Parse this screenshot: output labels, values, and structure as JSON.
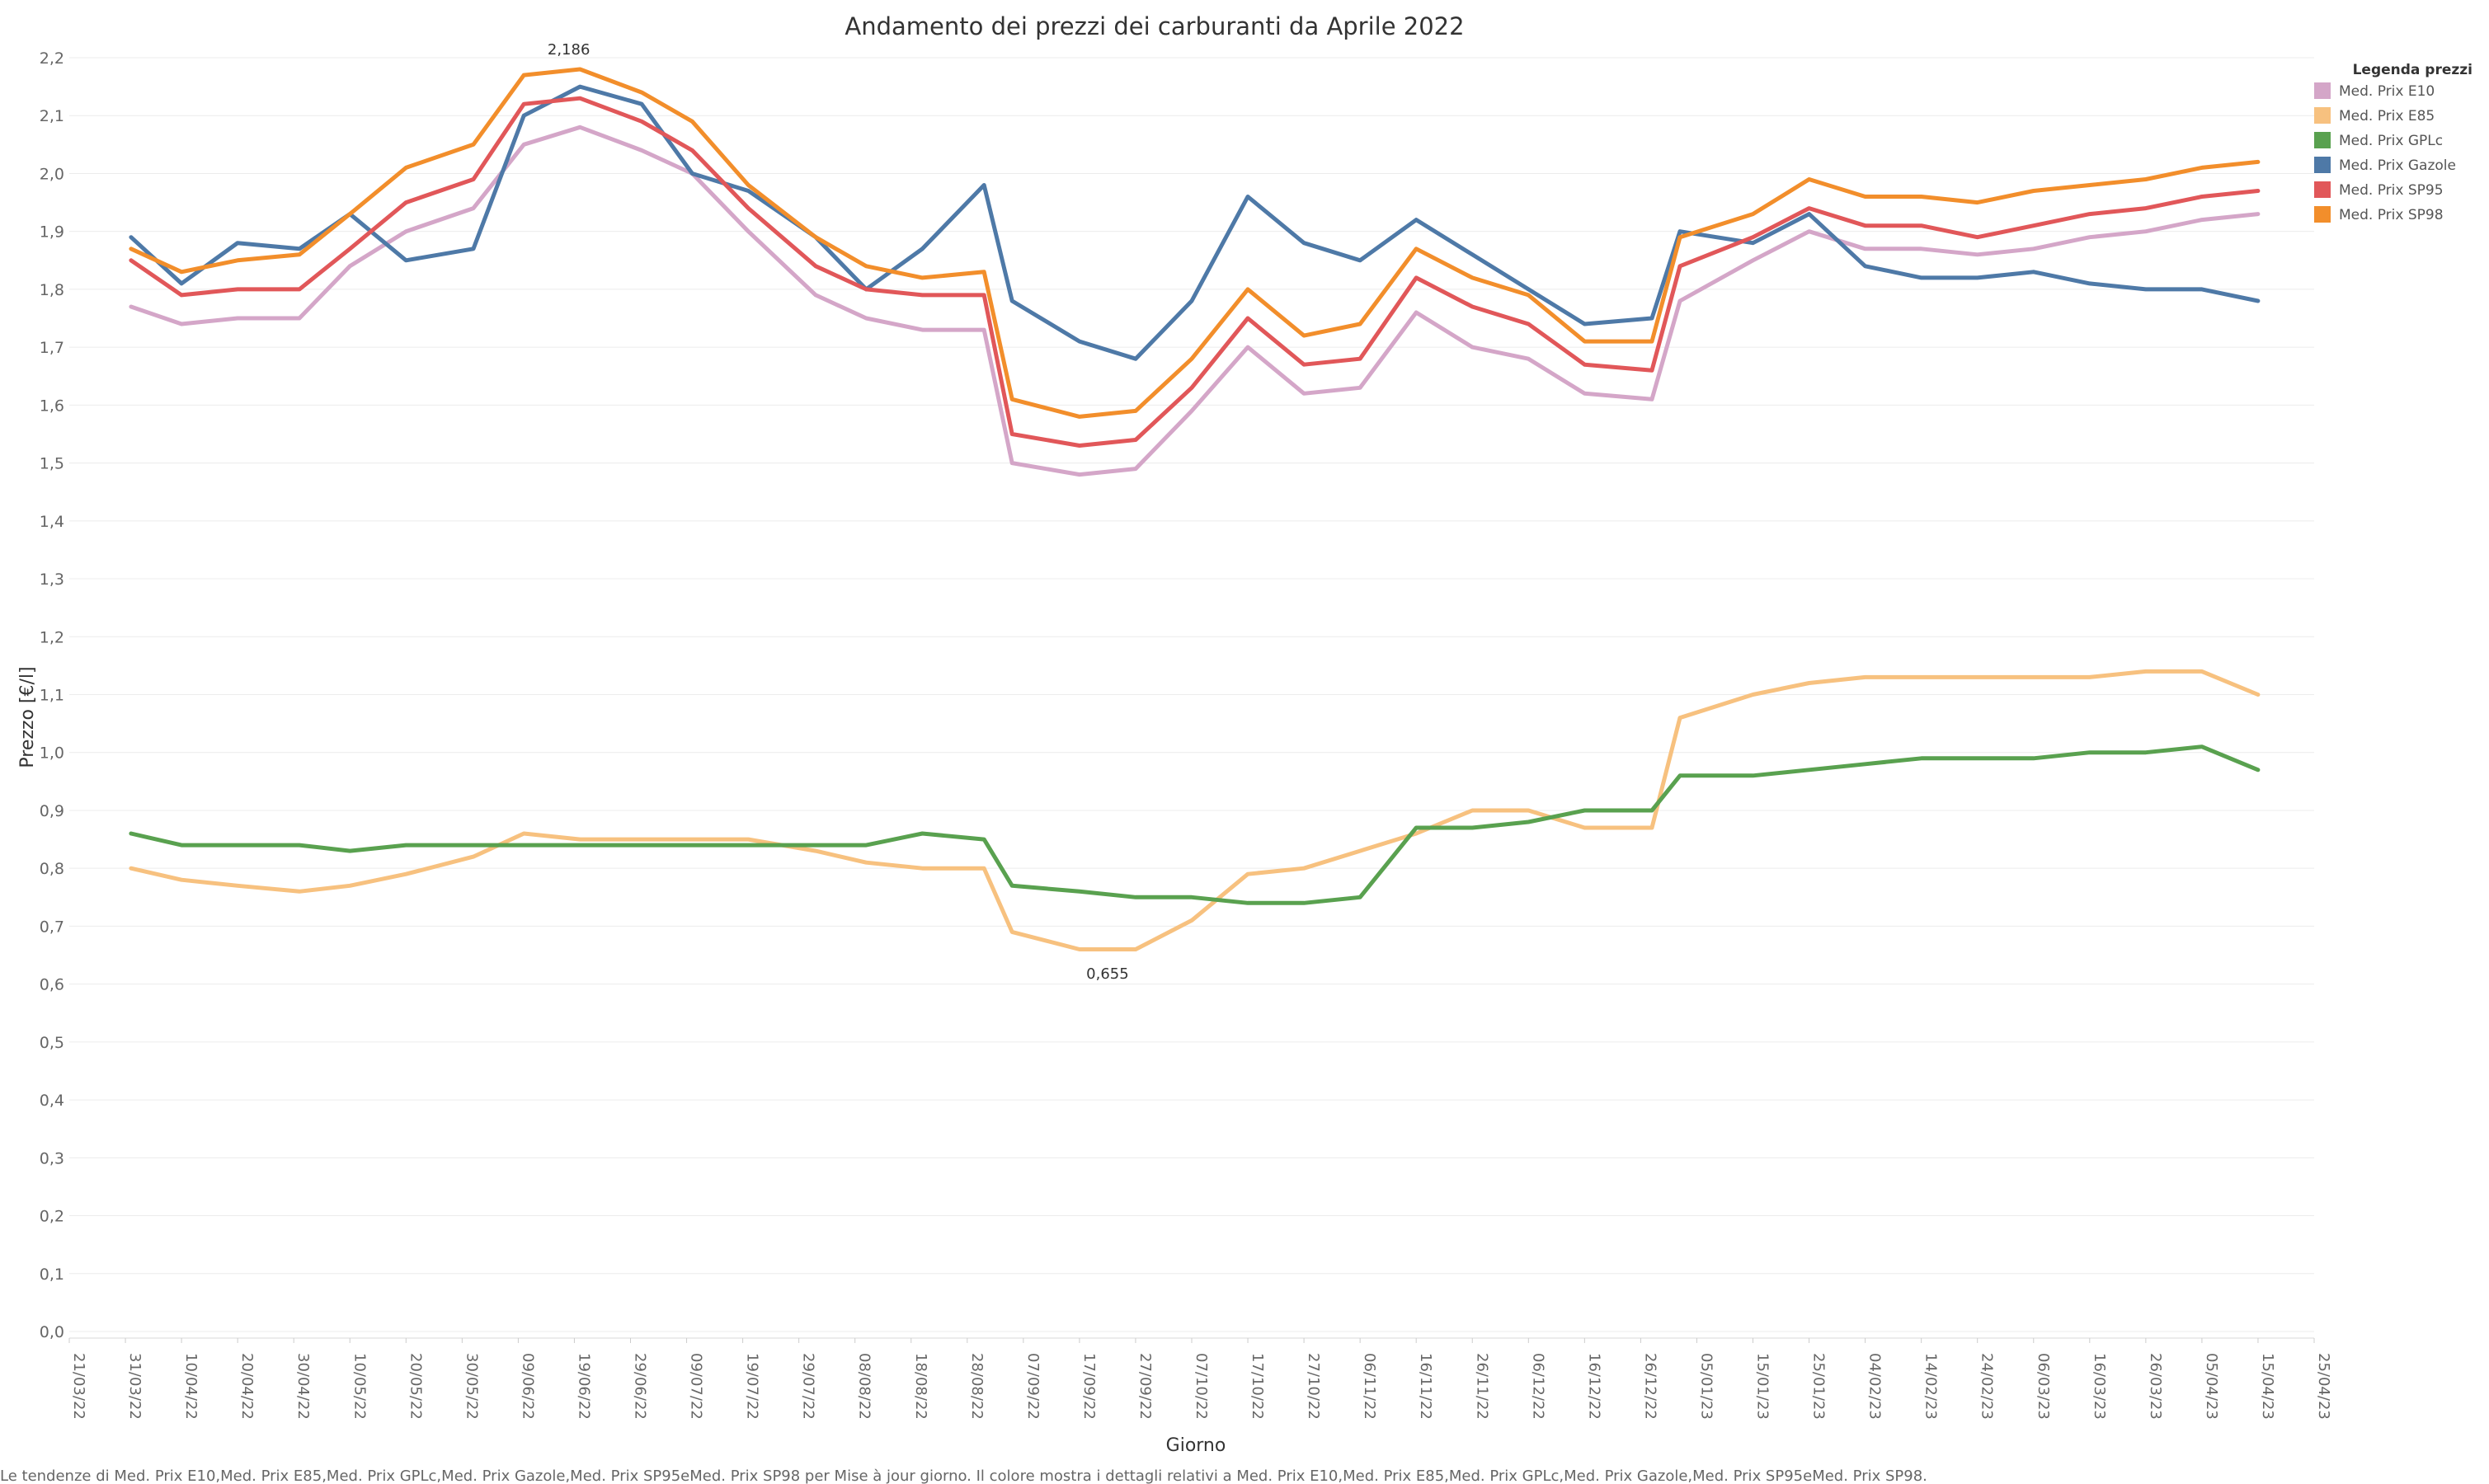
{
  "chart_data": {
    "type": "line",
    "title": "Andamento dei prezzi dei carburanti da Aprile 2022",
    "xlabel": "Giorno",
    "ylabel": "Prezzo [€/l]",
    "ylim": [
      0,
      2.2
    ],
    "yticks": [
      "0,0",
      "0,1",
      "0,2",
      "0,3",
      "0,4",
      "0,5",
      "0,6",
      "0,7",
      "0,8",
      "0,9",
      "1,0",
      "1,1",
      "1,2",
      "1,3",
      "1,4",
      "1,5",
      "1,6",
      "1,7",
      "1,8",
      "1,9",
      "2,0",
      "2,1",
      "2,2"
    ],
    "xrange": [
      "2022-03-21",
      "2023-04-25"
    ],
    "xticks": [
      "21/03/22",
      "31/03/22",
      "10/04/22",
      "20/04/22",
      "30/04/22",
      "10/05/22",
      "20/05/22",
      "30/05/22",
      "09/06/22",
      "19/06/22",
      "29/06/22",
      "09/07/22",
      "19/07/22",
      "29/07/22",
      "08/08/22",
      "18/08/22",
      "28/08/22",
      "07/09/22",
      "17/09/22",
      "27/09/22",
      "07/10/22",
      "17/10/22",
      "27/10/22",
      "06/11/22",
      "16/11/22",
      "26/11/22",
      "06/12/22",
      "16/12/22",
      "26/12/22",
      "05/01/23",
      "15/01/23",
      "25/01/23",
      "04/02/23",
      "14/02/23",
      "24/02/23",
      "06/03/23",
      "16/03/23",
      "26/03/23",
      "05/04/23",
      "15/04/23",
      "25/04/23"
    ],
    "grid": true,
    "legend": {
      "title": "Legenda prezzi",
      "placement": "top-right"
    },
    "x": [
      "2022-04-01",
      "2022-04-10",
      "2022-04-20",
      "2022-05-01",
      "2022-05-10",
      "2022-05-20",
      "2022-06-01",
      "2022-06-10",
      "2022-06-20",
      "2022-07-01",
      "2022-07-10",
      "2022-07-20",
      "2022-08-01",
      "2022-08-10",
      "2022-08-20",
      "2022-08-31",
      "2022-09-05",
      "2022-09-17",
      "2022-09-27",
      "2022-10-07",
      "2022-10-17",
      "2022-10-27",
      "2022-11-06",
      "2022-11-16",
      "2022-11-26",
      "2022-12-06",
      "2022-12-16",
      "2022-12-28",
      "2023-01-02",
      "2023-01-15",
      "2023-01-25",
      "2023-02-04",
      "2023-02-14",
      "2023-02-24",
      "2023-03-06",
      "2023-03-16",
      "2023-03-26",
      "2023-04-05",
      "2023-04-15"
    ],
    "series": [
      {
        "name": "Med. Prix E10",
        "color": "#d4a6c8",
        "values": [
          1.77,
          1.74,
          1.75,
          1.75,
          1.84,
          1.9,
          1.94,
          2.05,
          2.08,
          2.04,
          2.0,
          1.9,
          1.79,
          1.75,
          1.73,
          1.73,
          1.5,
          1.48,
          1.49,
          1.59,
          1.7,
          1.62,
          1.63,
          1.76,
          1.7,
          1.68,
          1.62,
          1.61,
          1.78,
          1.85,
          1.9,
          1.87,
          1.87,
          1.86,
          1.87,
          1.89,
          1.9,
          1.92,
          1.93
        ]
      },
      {
        "name": "Med. Prix E85",
        "color": "#f7c17f",
        "values": [
          0.8,
          0.78,
          0.77,
          0.76,
          0.77,
          0.79,
          0.82,
          0.86,
          0.85,
          0.85,
          0.85,
          0.85,
          0.83,
          0.81,
          0.8,
          0.8,
          0.69,
          0.66,
          0.66,
          0.71,
          0.79,
          0.8,
          0.83,
          0.86,
          0.9,
          0.9,
          0.87,
          0.87,
          1.06,
          1.1,
          1.12,
          1.13,
          1.13,
          1.13,
          1.13,
          1.13,
          1.14,
          1.14,
          1.1
        ]
      },
      {
        "name": "Med. Prix GPLc",
        "color": "#59a14f",
        "values": [
          0.86,
          0.84,
          0.84,
          0.84,
          0.83,
          0.84,
          0.84,
          0.84,
          0.84,
          0.84,
          0.84,
          0.84,
          0.84,
          0.84,
          0.86,
          0.85,
          0.77,
          0.76,
          0.75,
          0.75,
          0.74,
          0.74,
          0.75,
          0.87,
          0.87,
          0.88,
          0.9,
          0.9,
          0.96,
          0.96,
          0.97,
          0.98,
          0.99,
          0.99,
          0.99,
          1.0,
          1.0,
          1.01,
          0.97
        ]
      },
      {
        "name": "Med. Prix Gazole",
        "color": "#4e79a7",
        "values": [
          1.89,
          1.81,
          1.88,
          1.87,
          1.93,
          1.85,
          1.87,
          2.1,
          2.15,
          2.12,
          2.0,
          1.97,
          1.89,
          1.8,
          1.87,
          1.98,
          1.78,
          1.71,
          1.68,
          1.78,
          1.96,
          1.88,
          1.85,
          1.92,
          1.86,
          1.8,
          1.74,
          1.75,
          1.9,
          1.88,
          1.93,
          1.84,
          1.82,
          1.82,
          1.83,
          1.81,
          1.8,
          1.8,
          1.78
        ]
      },
      {
        "name": "Med. Prix SP95",
        "color": "#e15759",
        "values": [
          1.85,
          1.79,
          1.8,
          1.8,
          1.87,
          1.95,
          1.99,
          2.12,
          2.13,
          2.09,
          2.04,
          1.94,
          1.84,
          1.8,
          1.79,
          1.79,
          1.55,
          1.53,
          1.54,
          1.63,
          1.75,
          1.67,
          1.68,
          1.82,
          1.77,
          1.74,
          1.67,
          1.66,
          1.84,
          1.89,
          1.94,
          1.91,
          1.91,
          1.89,
          1.91,
          1.93,
          1.94,
          1.96,
          1.97
        ]
      },
      {
        "name": "Med. Prix SP98",
        "color": "#f28e2b",
        "values": [
          1.87,
          1.83,
          1.85,
          1.86,
          1.93,
          2.01,
          2.05,
          2.17,
          2.18,
          2.14,
          2.09,
          1.98,
          1.89,
          1.84,
          1.82,
          1.83,
          1.61,
          1.58,
          1.59,
          1.68,
          1.8,
          1.72,
          1.74,
          1.87,
          1.82,
          1.79,
          1.71,
          1.71,
          1.89,
          1.93,
          1.99,
          1.96,
          1.96,
          1.95,
          1.97,
          1.98,
          1.99,
          2.01,
          2.02
        ]
      }
    ],
    "annotations": [
      {
        "text": "2,186",
        "x": "2022-06-18",
        "y": 2.186
      },
      {
        "text": "0,655",
        "x": "2022-09-22",
        "y": 0.655
      }
    ],
    "footnote": "Le tendenze di Med. Prix E10,Med. Prix E85,Med. Prix GPLc,Med. Prix Gazole,Med. Prix SP95eMed. Prix SP98 per Mise à jour giorno. Il colore mostra i dettagli relativi a Med. Prix E10,Med. Prix E85,Med. Prix GPLc,Med. Prix Gazole,Med. Prix SP95eMed. Prix SP98."
  }
}
